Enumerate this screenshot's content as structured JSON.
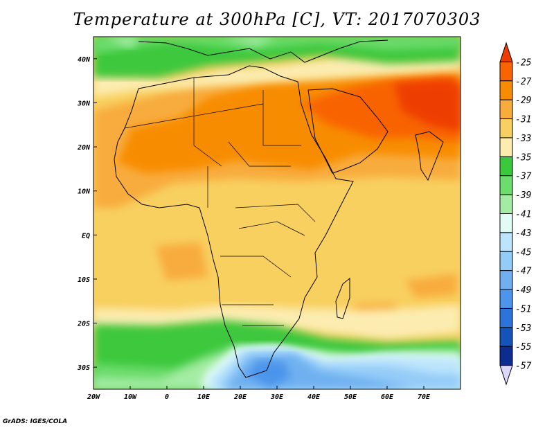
{
  "title": "Temperature at 300hPa [C], VT: 2017070303",
  "credit": "GrADS: IGES/COLA",
  "map": {
    "lon_range": [
      -20,
      80
    ],
    "lat_range": [
      -35,
      45
    ],
    "lon_ticks": [
      {
        "value": -20,
        "label": "20W"
      },
      {
        "value": -10,
        "label": "10W"
      },
      {
        "value": 0,
        "label": "0"
      },
      {
        "value": 10,
        "label": "10E"
      },
      {
        "value": 20,
        "label": "20E"
      },
      {
        "value": 30,
        "label": "30E"
      },
      {
        "value": 40,
        "label": "40E"
      },
      {
        "value": 50,
        "label": "50E"
      },
      {
        "value": 60,
        "label": "60E"
      },
      {
        "value": 70,
        "label": "70E"
      }
    ],
    "lat_ticks": [
      {
        "value": 40,
        "label": "40N"
      },
      {
        "value": 30,
        "label": "30N"
      },
      {
        "value": 20,
        "label": "20N"
      },
      {
        "value": 10,
        "label": "10N"
      },
      {
        "value": 0,
        "label": "EQ"
      },
      {
        "value": -10,
        "label": "10S"
      },
      {
        "value": -20,
        "label": "20S"
      },
      {
        "value": -30,
        "label": "30S"
      }
    ]
  },
  "colorbar": {
    "labels": [
      "-25",
      "-27",
      "-29",
      "-31",
      "-33",
      "-35",
      "-37",
      "-39",
      "-41",
      "-43",
      "-45",
      "-47",
      "-49",
      "-51",
      "-53",
      "-55",
      "-57"
    ],
    "colors": [
      "#ee3c00",
      "#f86400",
      "#f88c00",
      "#f8ac3c",
      "#f8d060",
      "#fcecb0",
      "#3cc83c",
      "#6cdc6c",
      "#a4eca4",
      "#e0fcf4",
      "#bce4fc",
      "#94ccf8",
      "#70b0f0",
      "#4c94ec",
      "#2c74dc",
      "#1454b8",
      "#0c2c90",
      "#dcd8fc"
    ]
  }
}
